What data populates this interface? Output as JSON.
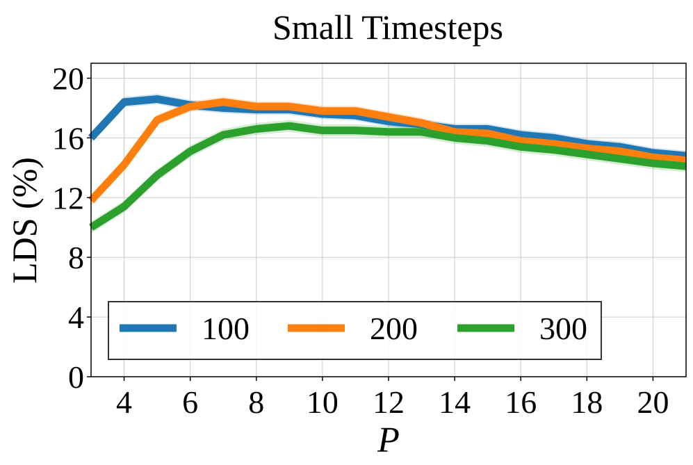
{
  "chart_data": {
    "type": "line",
    "title": "Small Timesteps",
    "xlabel": "P",
    "ylabel": "LDS (%)",
    "xlim": [
      3,
      21
    ],
    "ylim": [
      0,
      21
    ],
    "xticks": [
      4,
      6,
      8,
      10,
      12,
      14,
      16,
      18,
      20
    ],
    "yticks": [
      0,
      4,
      8,
      12,
      16,
      20
    ],
    "grid": true,
    "legend_position": "lower-center",
    "x": [
      3,
      4,
      5,
      6,
      7,
      8,
      9,
      10,
      11,
      12,
      13,
      14,
      15,
      16,
      17,
      18,
      19,
      20,
      21
    ],
    "series": [
      {
        "name": "100",
        "color": "#1f77b4",
        "values": [
          16.0,
          18.4,
          18.6,
          18.2,
          18.0,
          17.9,
          17.9,
          17.6,
          17.5,
          17.1,
          16.9,
          16.6,
          16.6,
          16.2,
          16.0,
          15.6,
          15.4,
          15.0,
          14.8
        ],
        "band": 0.35
      },
      {
        "name": "200",
        "color": "#ff7f0e",
        "values": [
          11.8,
          14.2,
          17.2,
          18.1,
          18.4,
          18.1,
          18.1,
          17.8,
          17.8,
          17.4,
          17.0,
          16.4,
          16.3,
          15.8,
          15.6,
          15.3,
          15.1,
          14.7,
          14.5
        ],
        "band": 0.35
      },
      {
        "name": "300",
        "color": "#2ca02c",
        "values": [
          10.0,
          11.4,
          13.5,
          15.1,
          16.2,
          16.6,
          16.8,
          16.5,
          16.5,
          16.4,
          16.4,
          16.0,
          15.8,
          15.4,
          15.2,
          14.9,
          14.6,
          14.3,
          14.1
        ],
        "band": 0.4
      }
    ]
  }
}
